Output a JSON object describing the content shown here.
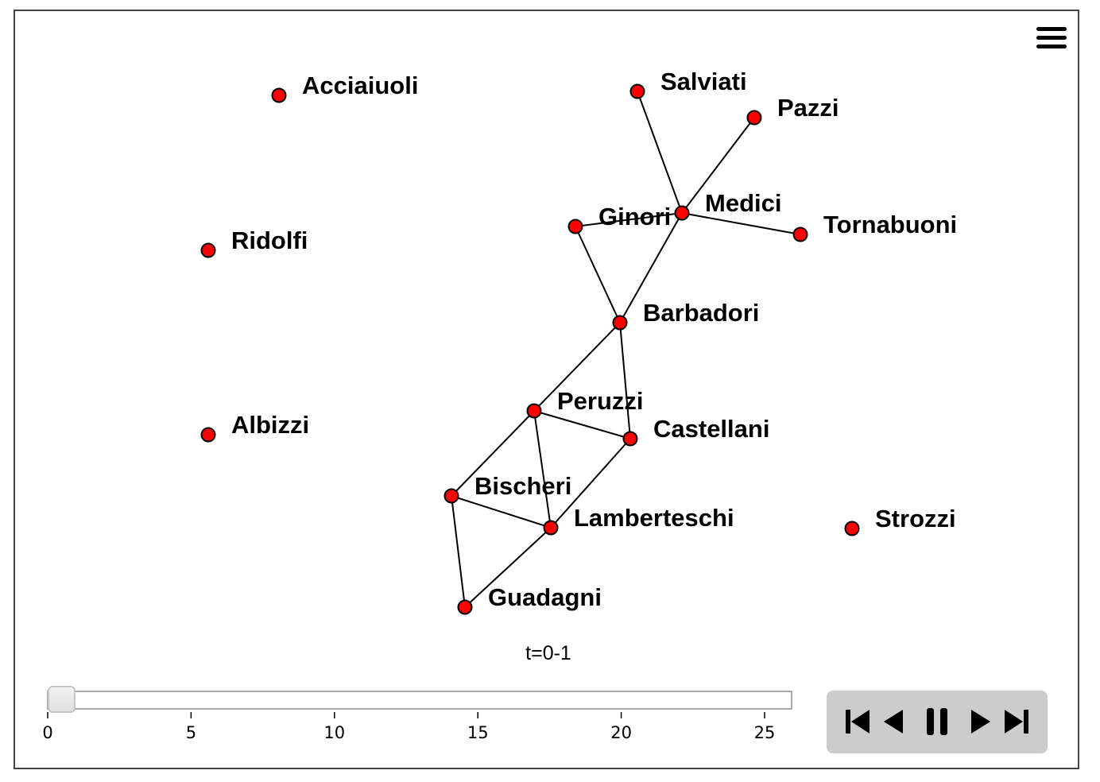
{
  "graph": {
    "nodes": [
      {
        "id": "Acciaiuoli",
        "label": "Acciaiuoli"
      },
      {
        "id": "Salviati",
        "label": "Salviati"
      },
      {
        "id": "Pazzi",
        "label": "Pazzi"
      },
      {
        "id": "Ridolfi",
        "label": "Ridolfi"
      },
      {
        "id": "Ginori",
        "label": "Ginori"
      },
      {
        "id": "Medici",
        "label": "Medici"
      },
      {
        "id": "Tornabuoni",
        "label": "Tornabuoni"
      },
      {
        "id": "Barbadori",
        "label": "Barbadori"
      },
      {
        "id": "Albizzi",
        "label": "Albizzi"
      },
      {
        "id": "Peruzzi",
        "label": "Peruzzi"
      },
      {
        "id": "Castellani",
        "label": "Castellani"
      },
      {
        "id": "Bischeri",
        "label": "Bischeri"
      },
      {
        "id": "Lamberteschi",
        "label": "Lamberteschi"
      },
      {
        "id": "Strozzi",
        "label": "Strozzi"
      },
      {
        "id": "Guadagni",
        "label": "Guadagni"
      }
    ],
    "edges": [
      [
        "Salviati",
        "Medici"
      ],
      [
        "Pazzi",
        "Medici"
      ],
      [
        "Ginori",
        "Medici"
      ],
      [
        "Medici",
        "Tornabuoni"
      ],
      [
        "Medici",
        "Barbadori"
      ],
      [
        "Ginori",
        "Barbadori"
      ],
      [
        "Barbadori",
        "Peruzzi"
      ],
      [
        "Barbadori",
        "Castellani"
      ],
      [
        "Peruzzi",
        "Castellani"
      ],
      [
        "Peruzzi",
        "Bischeri"
      ],
      [
        "Peruzzi",
        "Lamberteschi"
      ],
      [
        "Castellani",
        "Lamberteschi"
      ],
      [
        "Bischeri",
        "Lamberteschi"
      ],
      [
        "Bischeri",
        "Guadagni"
      ],
      [
        "Lamberteschi",
        "Guadagni"
      ]
    ],
    "node_color": "#ff0000"
  },
  "time_label": "t=0-1",
  "slider": {
    "value": 0,
    "min": 0,
    "max": 26,
    "ticks": [
      0,
      5,
      10,
      15,
      20,
      25
    ]
  },
  "controls": {
    "icons": [
      "skip-to-start-icon",
      "step-back-icon",
      "pause-icon",
      "step-forward-icon",
      "skip-to-end-icon"
    ]
  },
  "menu": {
    "icon": "hamburger-menu-icon"
  }
}
